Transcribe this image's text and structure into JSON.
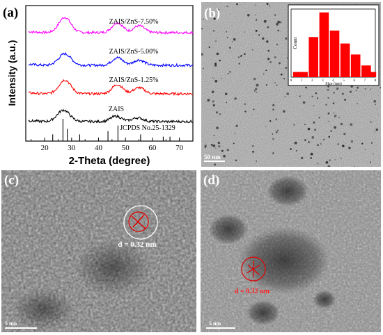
{
  "panel_a": {
    "label": "(a)",
    "ylabel": "Intensity (a.u.)",
    "xlabel": "2-Theta (degree)",
    "xticks": [
      "20",
      "30",
      "40",
      "50",
      "60",
      "70"
    ],
    "series_labels": [
      "ZAIS/ZnS-7.50%",
      "ZAIS/ZnS-5.00%",
      "ZAIS/ZnS-1.25%",
      "ZAIS",
      "JCPDS No.25-1329"
    ]
  },
  "panel_b": {
    "label": "(b)",
    "scale_bar": "50 nm",
    "inset": {
      "ylabel": "Count",
      "xlabel": "Size (nm)",
      "xticks": [
        "0",
        "1",
        "2",
        "3",
        "4",
        "5",
        "6",
        "7",
        "8"
      ]
    }
  },
  "panel_c": {
    "label": "(c)",
    "annotation": "d = 0.32 nm",
    "scale_bar": "5 nm"
  },
  "panel_d": {
    "label": "(d)",
    "annotation": "d = 0.32 nm",
    "scale_bar": "5 nm"
  },
  "chart_data": [
    {
      "type": "line",
      "xlabel": "2-Theta (degree)",
      "ylabel": "Intensity (a.u.)",
      "xlim": [
        13,
        75
      ],
      "series": [
        {
          "name": "ZAIS/ZnS-7.50%",
          "color": "#ff00ff",
          "offset": 3,
          "peaks": [
            [
              27.5,
              1.0,
              2.2
            ],
            [
              47.0,
              0.65,
              2.0
            ],
            [
              55.0,
              0.45,
              2.0
            ]
          ]
        },
        {
          "name": "ZAIS/ZnS-5.00%",
          "color": "#0000ff",
          "offset": 2,
          "peaks": [
            [
              27.5,
              0.75,
              2.3
            ],
            [
              47.0,
              0.5,
              2.0
            ],
            [
              55.0,
              0.35,
              2.0
            ]
          ]
        },
        {
          "name": "ZAIS/ZnS-1.25%",
          "color": "#ff0000",
          "offset": 1,
          "peaks": [
            [
              27.5,
              0.9,
              2.2
            ],
            [
              47.0,
              0.6,
              2.0
            ],
            [
              55.0,
              0.4,
              2.0
            ]
          ]
        },
        {
          "name": "ZAIS",
          "color": "#000000",
          "offset": 0,
          "peaks": [
            [
              27.0,
              0.75,
              2.3
            ],
            [
              46.5,
              0.35,
              2.0
            ],
            [
              54.5,
              0.25,
              2.0
            ]
          ]
        }
      ],
      "reference": {
        "name": "JCPDS No.25-1329",
        "lines": [
          [
            23.0,
            0.3
          ],
          [
            26.8,
            1.0
          ],
          [
            28.4,
            0.55
          ],
          [
            33.0,
            0.3
          ],
          [
            43.5,
            0.45
          ],
          [
            47.2,
            0.7
          ],
          [
            55.6,
            0.3
          ],
          [
            64.0,
            0.2
          ],
          [
            66.5,
            0.2
          ]
        ]
      }
    },
    {
      "type": "bar",
      "xlabel": "Size (nm)",
      "ylabel": "Count",
      "categories": [
        "1",
        "2",
        "3",
        "4",
        "5",
        "6",
        "7"
      ],
      "values": [
        8,
        62,
        100,
        72,
        52,
        35,
        18
      ],
      "extra": [
        [
          0.5,
          8
        ],
        [
          7.5,
          8
        ]
      ],
      "xlim": [
        0,
        8
      ],
      "ylim": [
        0,
        100
      ],
      "color": "#ff0000"
    }
  ]
}
